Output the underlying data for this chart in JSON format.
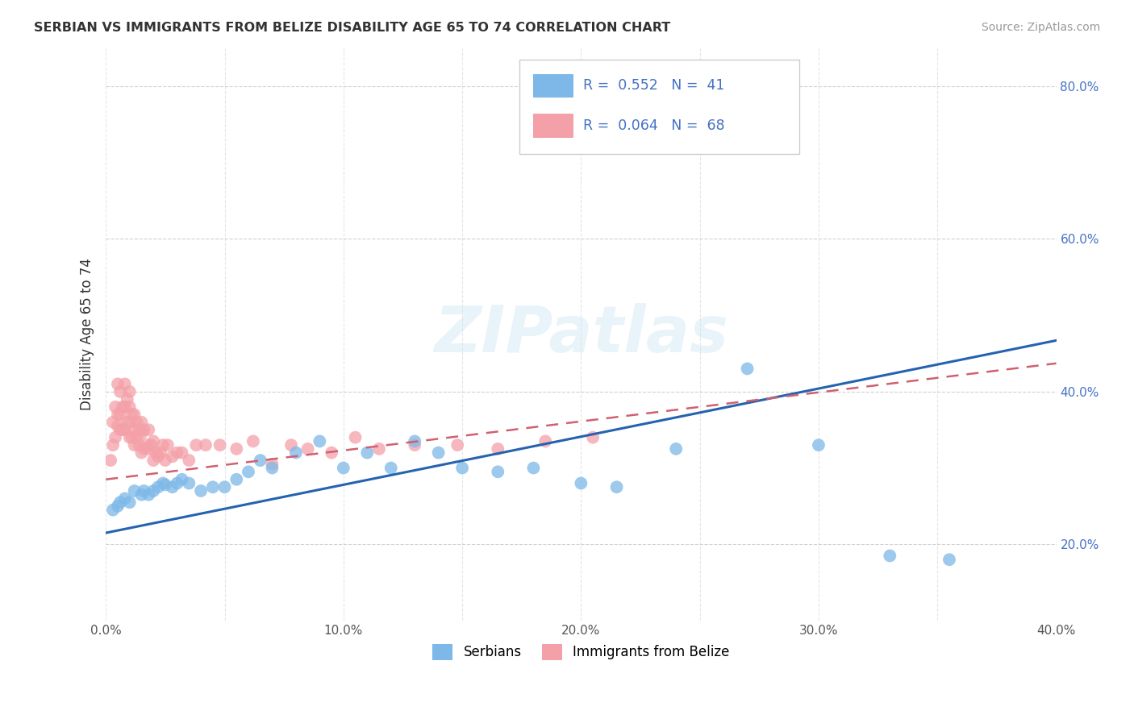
{
  "title": "SERBIAN VS IMMIGRANTS FROM BELIZE DISABILITY AGE 65 TO 74 CORRELATION CHART",
  "source": "Source: ZipAtlas.com",
  "ylabel": "Disability Age 65 to 74",
  "xlim": [
    0.0,
    0.4
  ],
  "ylim": [
    0.1,
    0.85
  ],
  "xtick_labels": [
    "0.0%",
    "",
    "10.0%",
    "",
    "20.0%",
    "",
    "30.0%",
    "",
    "40.0%"
  ],
  "xtick_values": [
    0.0,
    0.05,
    0.1,
    0.15,
    0.2,
    0.25,
    0.3,
    0.35,
    0.4
  ],
  "ytick_labels": [
    "20.0%",
    "40.0%",
    "60.0%",
    "80.0%"
  ],
  "ytick_values": [
    0.2,
    0.4,
    0.6,
    0.8
  ],
  "serbian_color": "#7db8e8",
  "belize_color": "#f4a0a8",
  "serbian_line_color": "#2563b0",
  "belize_line_color": "#d06070",
  "serbian_R": 0.552,
  "serbian_N": 41,
  "belize_R": 0.064,
  "belize_N": 68,
  "background_color": "#ffffff",
  "grid_color": "#cccccc",
  "serbian_x": [
    0.003,
    0.005,
    0.006,
    0.008,
    0.01,
    0.012,
    0.015,
    0.016,
    0.018,
    0.02,
    0.022,
    0.024,
    0.025,
    0.028,
    0.03,
    0.032,
    0.035,
    0.04,
    0.045,
    0.05,
    0.055,
    0.06,
    0.065,
    0.07,
    0.08,
    0.09,
    0.1,
    0.11,
    0.12,
    0.13,
    0.14,
    0.15,
    0.165,
    0.18,
    0.2,
    0.215,
    0.24,
    0.27,
    0.3,
    0.33,
    0.355
  ],
  "serbian_y": [
    0.245,
    0.25,
    0.255,
    0.26,
    0.255,
    0.27,
    0.265,
    0.27,
    0.265,
    0.27,
    0.275,
    0.28,
    0.278,
    0.275,
    0.28,
    0.285,
    0.28,
    0.27,
    0.275,
    0.275,
    0.285,
    0.295,
    0.31,
    0.3,
    0.32,
    0.335,
    0.3,
    0.32,
    0.3,
    0.335,
    0.32,
    0.3,
    0.295,
    0.3,
    0.28,
    0.275,
    0.325,
    0.43,
    0.33,
    0.185,
    0.18
  ],
  "belize_x": [
    0.002,
    0.003,
    0.003,
    0.004,
    0.004,
    0.005,
    0.005,
    0.005,
    0.006,
    0.006,
    0.006,
    0.007,
    0.007,
    0.008,
    0.008,
    0.008,
    0.009,
    0.009,
    0.01,
    0.01,
    0.01,
    0.01,
    0.011,
    0.011,
    0.012,
    0.012,
    0.012,
    0.013,
    0.013,
    0.014,
    0.014,
    0.015,
    0.015,
    0.015,
    0.016,
    0.016,
    0.017,
    0.018,
    0.018,
    0.019,
    0.02,
    0.02,
    0.021,
    0.022,
    0.023,
    0.024,
    0.025,
    0.026,
    0.028,
    0.03,
    0.032,
    0.035,
    0.038,
    0.042,
    0.048,
    0.055,
    0.062,
    0.07,
    0.078,
    0.085,
    0.095,
    0.105,
    0.115,
    0.13,
    0.148,
    0.165,
    0.185,
    0.205
  ],
  "belize_y": [
    0.31,
    0.33,
    0.36,
    0.34,
    0.38,
    0.355,
    0.37,
    0.41,
    0.35,
    0.37,
    0.4,
    0.35,
    0.38,
    0.35,
    0.38,
    0.41,
    0.36,
    0.39,
    0.34,
    0.36,
    0.38,
    0.4,
    0.34,
    0.37,
    0.33,
    0.35,
    0.37,
    0.34,
    0.36,
    0.33,
    0.35,
    0.32,
    0.345,
    0.36,
    0.325,
    0.35,
    0.33,
    0.325,
    0.35,
    0.33,
    0.31,
    0.335,
    0.32,
    0.315,
    0.32,
    0.33,
    0.31,
    0.33,
    0.315,
    0.32,
    0.32,
    0.31,
    0.33,
    0.33,
    0.33,
    0.325,
    0.335,
    0.305,
    0.33,
    0.325,
    0.32,
    0.34,
    0.325,
    0.33,
    0.33,
    0.325,
    0.335,
    0.34
  ]
}
